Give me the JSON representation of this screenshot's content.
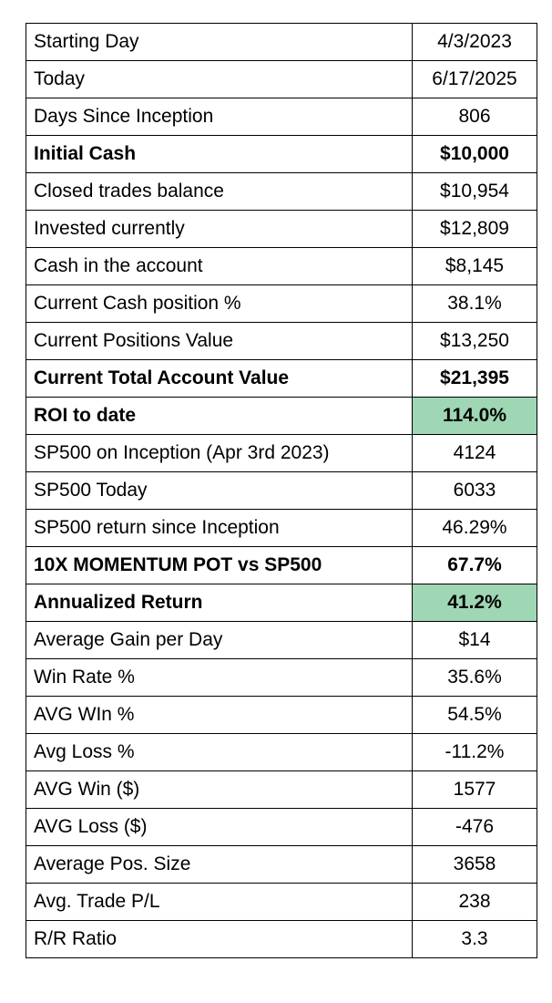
{
  "highlight_color": "#9fd6b4",
  "rows": [
    {
      "label": "Starting Day",
      "value": "4/3/2023",
      "bold": false,
      "highlight": false
    },
    {
      "label": "Today",
      "value": "6/17/2025",
      "bold": false,
      "highlight": false
    },
    {
      "label": "Days Since Inception",
      "value": "806",
      "bold": false,
      "highlight": false
    },
    {
      "label": "Initial Cash",
      "value": "$10,000",
      "bold": true,
      "highlight": false
    },
    {
      "label": "Closed trades balance",
      "value": "$10,954",
      "bold": false,
      "highlight": false
    },
    {
      "label": "Invested currently",
      "value": "$12,809",
      "bold": false,
      "highlight": false
    },
    {
      "label": "Cash in the account",
      "value": "$8,145",
      "bold": false,
      "highlight": false
    },
    {
      "label": "Current Cash position %",
      "value": "38.1%",
      "bold": false,
      "highlight": false
    },
    {
      "label": "Current Positions Value",
      "value": "$13,250",
      "bold": false,
      "highlight": false
    },
    {
      "label": "Current Total Account Value",
      "value": "$21,395",
      "bold": true,
      "highlight": false
    },
    {
      "label": "ROI to date",
      "value": "114.0%",
      "bold": true,
      "highlight": true
    },
    {
      "label": "SP500 on Inception (Apr 3rd 2023)",
      "value": "4124",
      "bold": false,
      "highlight": false
    },
    {
      "label": "SP500 Today",
      "value": "6033",
      "bold": false,
      "highlight": false
    },
    {
      "label": "SP500 return since Inception",
      "value": "46.29%",
      "bold": false,
      "highlight": false
    },
    {
      "label": "10X MOMENTUM POT vs SP500",
      "value": "67.7%",
      "bold": true,
      "highlight": false
    },
    {
      "label": "Annualized Return",
      "value": "41.2%",
      "bold": true,
      "highlight": true
    },
    {
      "label": "Average Gain per Day",
      "value": "$14",
      "bold": false,
      "highlight": false
    },
    {
      "label": "Win Rate %",
      "value": "35.6%",
      "bold": false,
      "highlight": false
    },
    {
      "label": "AVG WIn %",
      "value": "54.5%",
      "bold": false,
      "highlight": false
    },
    {
      "label": "Avg Loss %",
      "value": "-11.2%",
      "bold": false,
      "highlight": false
    },
    {
      "label": "AVG Win ($)",
      "value": "1577",
      "bold": false,
      "highlight": false
    },
    {
      "label": "AVG Loss ($)",
      "value": "-476",
      "bold": false,
      "highlight": false
    },
    {
      "label": "Average Pos. Size",
      "value": "3658",
      "bold": false,
      "highlight": false
    },
    {
      "label": "Avg. Trade P/L",
      "value": "238",
      "bold": false,
      "highlight": false
    },
    {
      "label": "R/R Ratio",
      "value": "3.3",
      "bold": false,
      "highlight": false
    }
  ]
}
